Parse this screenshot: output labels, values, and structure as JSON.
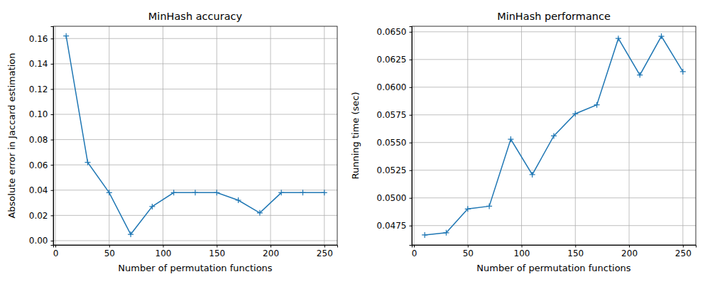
{
  "chart_data": [
    {
      "type": "line",
      "title": "MinHash accuracy",
      "x_label": "Number of permutation functions",
      "y_label": "Absolute error in Jaccard estimation",
      "x": [
        10,
        30,
        50,
        70,
        90,
        110,
        130,
        150,
        170,
        190,
        210,
        230,
        250
      ],
      "values": [
        0.162,
        0.062,
        0.038,
        0.005,
        0.027,
        0.038,
        0.038,
        0.038,
        0.032,
        0.022,
        0.038,
        0.038,
        0.038
      ],
      "color": "#1f77b4",
      "marker": "plus",
      "grid": true,
      "xlim": [
        -2,
        262
      ],
      "xticks": [
        0,
        50,
        100,
        150,
        200,
        250
      ],
      "ylim": [
        -0.0034,
        0.1697
      ],
      "yticks": [
        {
          "value": 0,
          "label": "0.00"
        },
        {
          "value": 0.02,
          "label": "0.02"
        },
        {
          "value": 0.04,
          "label": "0.04"
        },
        {
          "value": 0.06,
          "label": "0.06"
        },
        {
          "value": 0.08,
          "label": "0.08"
        },
        {
          "value": 0.1,
          "label": "0.10"
        },
        {
          "value": 0.12,
          "label": "0.12"
        },
        {
          "value": 0.14,
          "label": "0.14"
        },
        {
          "value": 0.16,
          "label": "0.16"
        }
      ]
    },
    {
      "type": "line",
      "title": "MinHash performance",
      "x_label": "Number of permutation functions",
      "y_label": "Running time (sec)",
      "x": [
        10,
        30,
        50,
        70,
        90,
        110,
        130,
        150,
        170,
        190,
        210,
        230,
        250
      ],
      "values": [
        0.04665,
        0.04685,
        0.049,
        0.04925,
        0.0553,
        0.0521,
        0.0556,
        0.0576,
        0.0584,
        0.0644,
        0.0611,
        0.0646,
        0.0614
      ],
      "color": "#1f77b4",
      "marker": "plus",
      "grid": true,
      "xlim": [
        -2,
        262
      ],
      "xticks": [
        0,
        50,
        100,
        150,
        200,
        250
      ],
      "ylim": [
        0.04575,
        0.0655
      ],
      "yticks": [
        {
          "value": 0.0475,
          "label": "0.0475"
        },
        {
          "value": 0.05,
          "label": "0.0500"
        },
        {
          "value": 0.0525,
          "label": "0.0525"
        },
        {
          "value": 0.055,
          "label": "0.0550"
        },
        {
          "value": 0.0575,
          "label": "0.0575"
        },
        {
          "value": 0.06,
          "label": "0.0600"
        },
        {
          "value": 0.0625,
          "label": "0.0625"
        },
        {
          "value": 0.065,
          "label": "0.0650"
        }
      ]
    }
  ]
}
